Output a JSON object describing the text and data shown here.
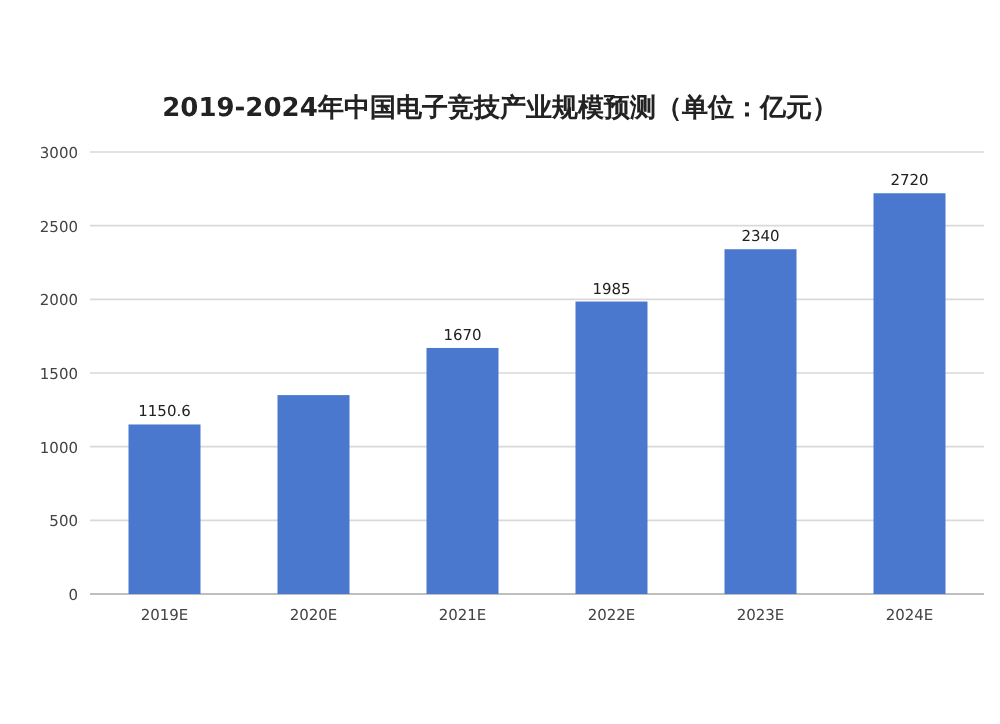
{
  "chart_data": {
    "type": "bar",
    "title": "2019-2024年中国电子竞技产业规模预测（单位：亿元）",
    "categories": [
      "2019E",
      "2020E",
      "2021E",
      "2022E",
      "2023E",
      "2024E"
    ],
    "values": [
      1150.6,
      1350,
      1670,
      1985,
      2340,
      2720
    ],
    "value_labels": [
      "1150.6",
      null,
      "1670",
      "1985",
      "2340",
      "2720"
    ],
    "color": "#4a78cf",
    "ylim": [
      0,
      3000
    ],
    "yticks": [
      0,
      500,
      1000,
      1500,
      2000,
      2500,
      3000
    ],
    "grid": "y"
  }
}
